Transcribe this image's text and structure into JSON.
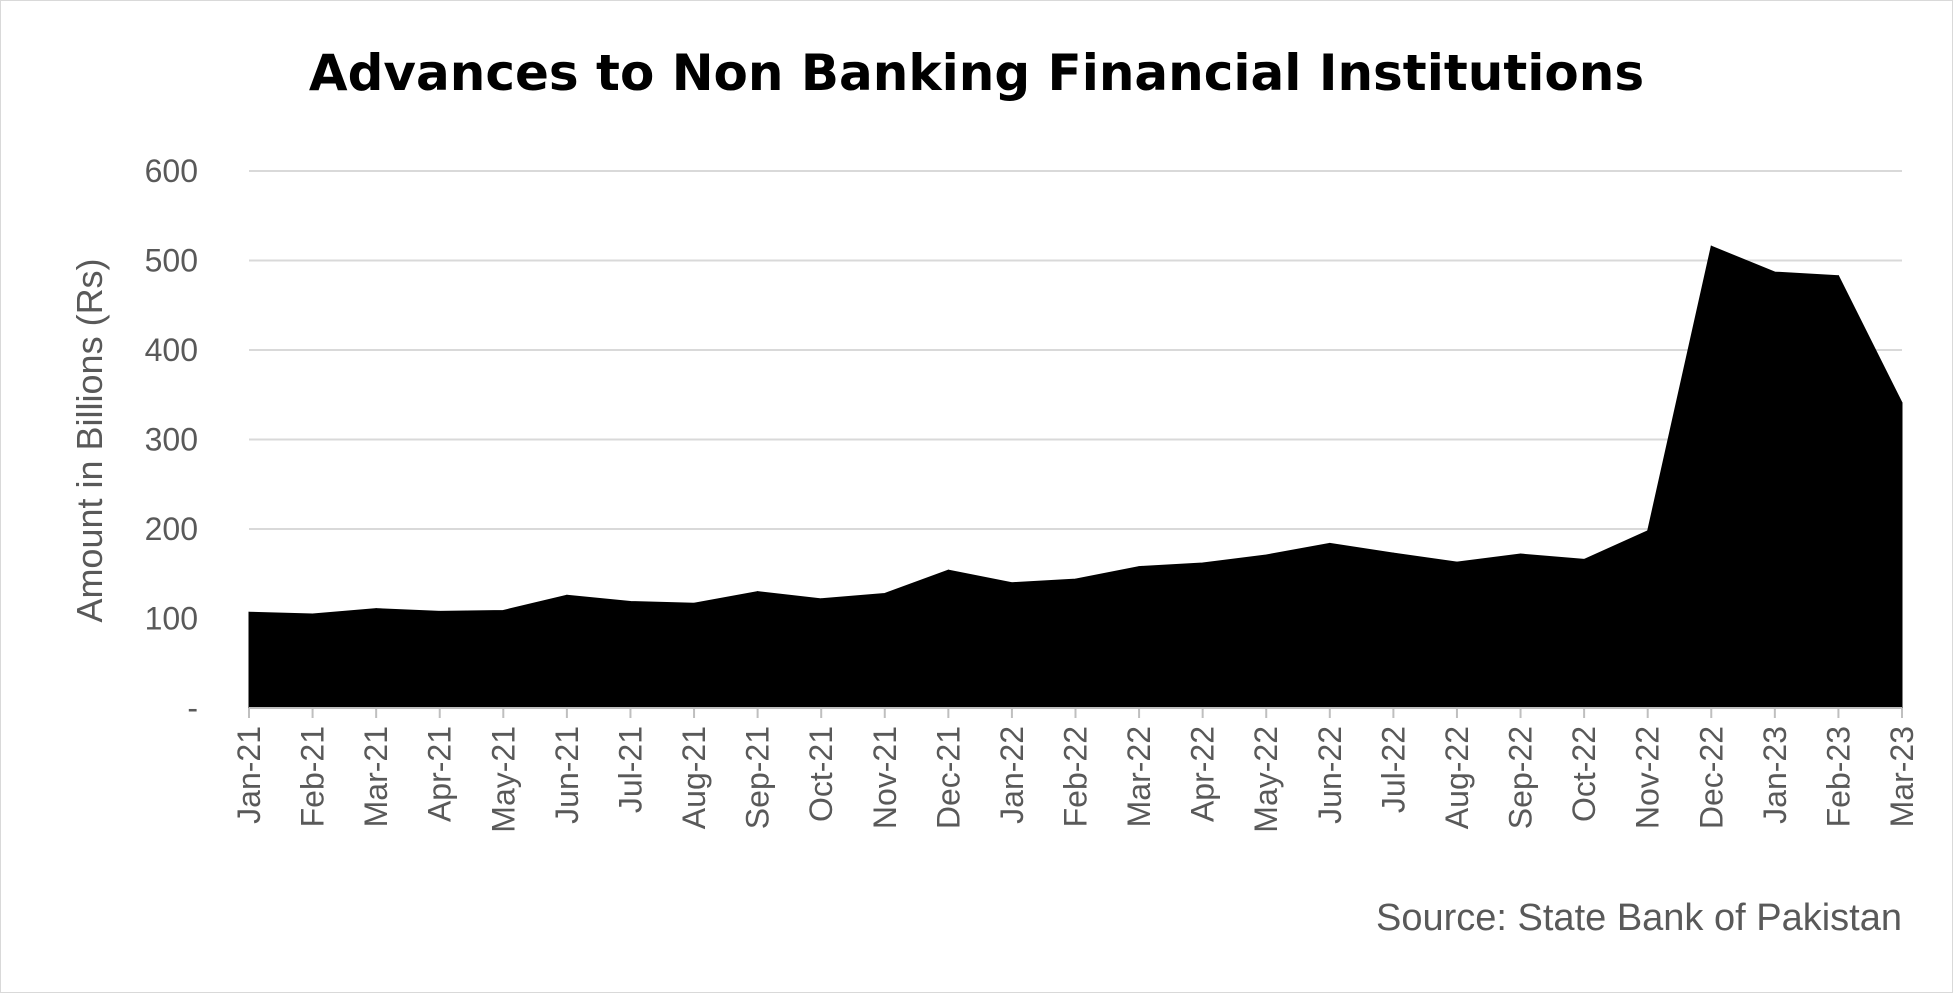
{
  "chart_data": {
    "type": "area",
    "title": "Advances to Non Banking Financial Institutions",
    "ylabel": "Amount in Billions (Rs)",
    "xlabel": "",
    "source": "Source: State Bank of Pakistan",
    "ylim": [
      0,
      600
    ],
    "yticks": [
      {
        "value": 0,
        "label": "-"
      },
      {
        "value": 100,
        "label": "100"
      },
      {
        "value": 200,
        "label": "200"
      },
      {
        "value": 300,
        "label": "300"
      },
      {
        "value": 400,
        "label": "400"
      },
      {
        "value": 500,
        "label": "500"
      },
      {
        "value": 600,
        "label": "600"
      }
    ],
    "grid": true,
    "legend": "none",
    "fill_color": "#000000",
    "categories": [
      "Jan-21",
      "Feb-21",
      "Mar-21",
      "Apr-21",
      "May-21",
      "Jun-21",
      "Jul-21",
      "Aug-21",
      "Sep-21",
      "Oct-21",
      "Nov-21",
      "Dec-21",
      "Jan-22",
      "Feb-22",
      "Mar-22",
      "Apr-22",
      "May-22",
      "Jun-22",
      "Jul-22",
      "Aug-22",
      "Sep-22",
      "Oct-22",
      "Nov-22",
      "Dec-22",
      "Jan-23",
      "Feb-23",
      "Mar-23"
    ],
    "values": [
      107,
      105,
      111,
      108,
      109,
      126,
      119,
      117,
      130,
      122,
      128,
      154,
      140,
      144,
      158,
      162,
      171,
      184,
      173,
      163,
      172,
      166,
      198,
      516,
      487,
      483,
      341
    ]
  }
}
